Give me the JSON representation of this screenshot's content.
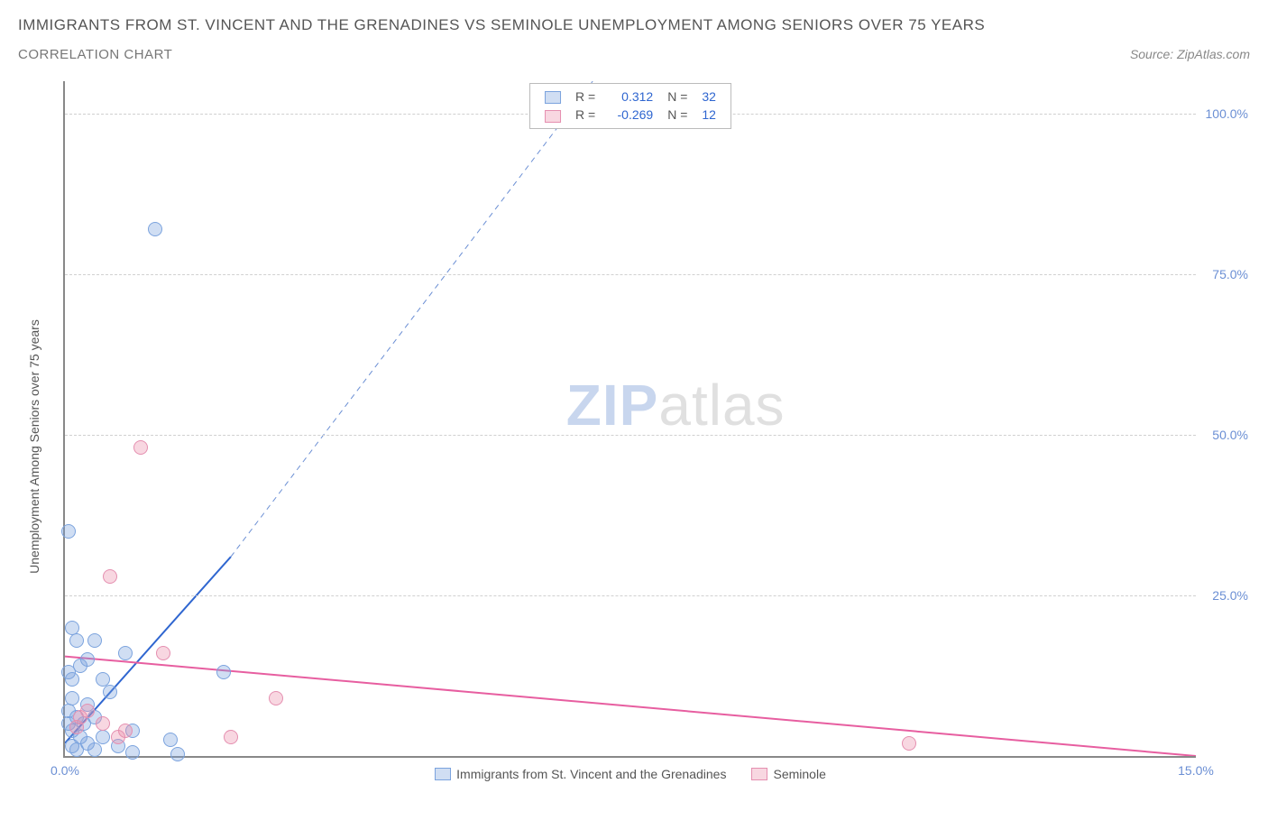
{
  "header": {
    "title": "IMMIGRANTS FROM ST. VINCENT AND THE GRENADINES VS SEMINOLE UNEMPLOYMENT AMONG SENIORS OVER 75 YEARS",
    "subtitle": "CORRELATION CHART",
    "source": "Source: ZipAtlas.com"
  },
  "watermark": {
    "zip": "ZIP",
    "atlas": "atlas"
  },
  "chart": {
    "type": "scatter",
    "x_min": 0.0,
    "x_max": 15.0,
    "y_min": 0.0,
    "y_max": 105.0,
    "y_axis_title": "Unemployment Among Seniors over 75 years",
    "x_ticks": [
      {
        "v": 0.0,
        "label": "0.0%"
      },
      {
        "v": 15.0,
        "label": "15.0%"
      }
    ],
    "y_ticks": [
      {
        "v": 25.0,
        "label": "25.0%"
      },
      {
        "v": 50.0,
        "label": "50.0%"
      },
      {
        "v": 75.0,
        "label": "75.0%"
      },
      {
        "v": 100.0,
        "label": "100.0%"
      }
    ],
    "background_color": "#ffffff",
    "grid_color": "#d0d0d0",
    "axis_color": "#888888",
    "series": [
      {
        "id": "svg_series",
        "name": "Immigrants from St. Vincent and the Grenadines",
        "color_fill": "rgba(120,160,220,0.35)",
        "color_stroke": "#7ba3de",
        "r_label": "R =",
        "r_value": "0.312",
        "n_label": "N =",
        "n_value": "32",
        "trend": {
          "solid": {
            "x1": 0.0,
            "y1": 2.0,
            "x2": 2.2,
            "y2": 31.0,
            "color": "#2f66d0",
            "width": 2
          },
          "dashed": {
            "x1": 2.2,
            "y1": 31.0,
            "x2": 7.0,
            "y2": 105.0,
            "color": "#6b8fd4",
            "width": 1,
            "dash": "6,5"
          }
        },
        "points": [
          {
            "x": 0.05,
            "y": 35.0
          },
          {
            "x": 1.2,
            "y": 82.0
          },
          {
            "x": 0.1,
            "y": 20.0
          },
          {
            "x": 0.15,
            "y": 18.0
          },
          {
            "x": 0.4,
            "y": 18.0
          },
          {
            "x": 0.3,
            "y": 15.0
          },
          {
            "x": 0.2,
            "y": 14.0
          },
          {
            "x": 0.05,
            "y": 13.0
          },
          {
            "x": 0.5,
            "y": 12.0
          },
          {
            "x": 0.1,
            "y": 12.0
          },
          {
            "x": 0.8,
            "y": 16.0
          },
          {
            "x": 2.1,
            "y": 13.0
          },
          {
            "x": 0.6,
            "y": 10.0
          },
          {
            "x": 0.1,
            "y": 9.0
          },
          {
            "x": 0.3,
            "y": 8.0
          },
          {
            "x": 0.05,
            "y": 7.0
          },
          {
            "x": 0.4,
            "y": 6.0
          },
          {
            "x": 0.15,
            "y": 6.0
          },
          {
            "x": 0.25,
            "y": 5.0
          },
          {
            "x": 0.05,
            "y": 5.0
          },
          {
            "x": 0.9,
            "y": 4.0
          },
          {
            "x": 0.1,
            "y": 4.0
          },
          {
            "x": 0.5,
            "y": 3.0
          },
          {
            "x": 0.2,
            "y": 3.0
          },
          {
            "x": 1.4,
            "y": 2.5
          },
          {
            "x": 0.3,
            "y": 2.0
          },
          {
            "x": 0.7,
            "y": 1.5
          },
          {
            "x": 0.1,
            "y": 1.5
          },
          {
            "x": 0.4,
            "y": 1.0
          },
          {
            "x": 0.15,
            "y": 1.0
          },
          {
            "x": 0.9,
            "y": 0.6
          },
          {
            "x": 1.5,
            "y": 0.3
          }
        ]
      },
      {
        "id": "seminole_series",
        "name": "Seminole",
        "color_fill": "rgba(235,140,170,0.35)",
        "color_stroke": "#e58fb0",
        "r_label": "R =",
        "r_value": "-0.269",
        "n_label": "N =",
        "n_value": "12",
        "trend": {
          "solid": {
            "x1": 0.0,
            "y1": 15.5,
            "x2": 15.0,
            "y2": 0.0,
            "color": "#e75ea0",
            "width": 2
          }
        },
        "points": [
          {
            "x": 1.0,
            "y": 48.0
          },
          {
            "x": 0.6,
            "y": 28.0
          },
          {
            "x": 1.3,
            "y": 16.0
          },
          {
            "x": 0.3,
            "y": 7.0
          },
          {
            "x": 0.5,
            "y": 5.0
          },
          {
            "x": 0.8,
            "y": 4.0
          },
          {
            "x": 0.15,
            "y": 4.5
          },
          {
            "x": 2.8,
            "y": 9.0
          },
          {
            "x": 0.7,
            "y": 3.0
          },
          {
            "x": 2.2,
            "y": 3.0
          },
          {
            "x": 0.2,
            "y": 6.0
          },
          {
            "x": 11.2,
            "y": 2.0
          }
        ]
      }
    ]
  }
}
